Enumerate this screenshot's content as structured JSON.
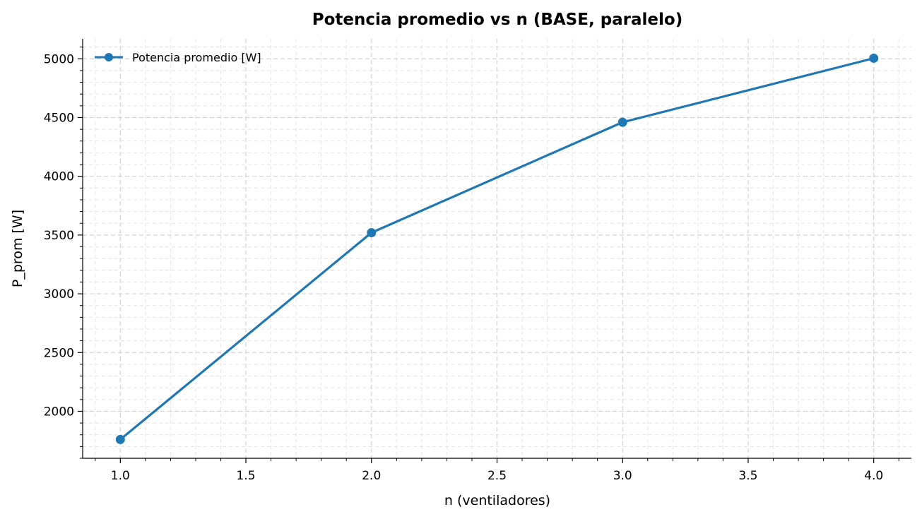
{
  "chart_data": {
    "type": "line",
    "title": "Potencia promedio vs n (BASE, paralelo)",
    "xlabel": "n (ventiladores)",
    "ylabel": "P_prom [W]",
    "xlim": [
      0.85,
      4.15
    ],
    "ylim": [
      1600,
      5170
    ],
    "xticks": [
      1.0,
      1.5,
      2.0,
      2.5,
      3.0,
      3.5,
      4.0
    ],
    "xtick_labels": [
      "1.0",
      "1.5",
      "2.0",
      "2.5",
      "3.0",
      "3.5",
      "4.0"
    ],
    "yticks": [
      2000,
      2500,
      3000,
      3500,
      4000,
      4500,
      5000
    ],
    "ytick_labels": [
      "2000",
      "2500",
      "3000",
      "3500",
      "4000",
      "4500",
      "5000"
    ],
    "grid": true,
    "legend_position": "top-left",
    "series": [
      {
        "name": "Potencia promedio [W]",
        "color": "#1f77b4",
        "marker": "circle",
        "x": [
          1,
          2,
          3,
          4
        ],
        "y": [
          1760,
          3520,
          4460,
          5005
        ]
      }
    ]
  }
}
